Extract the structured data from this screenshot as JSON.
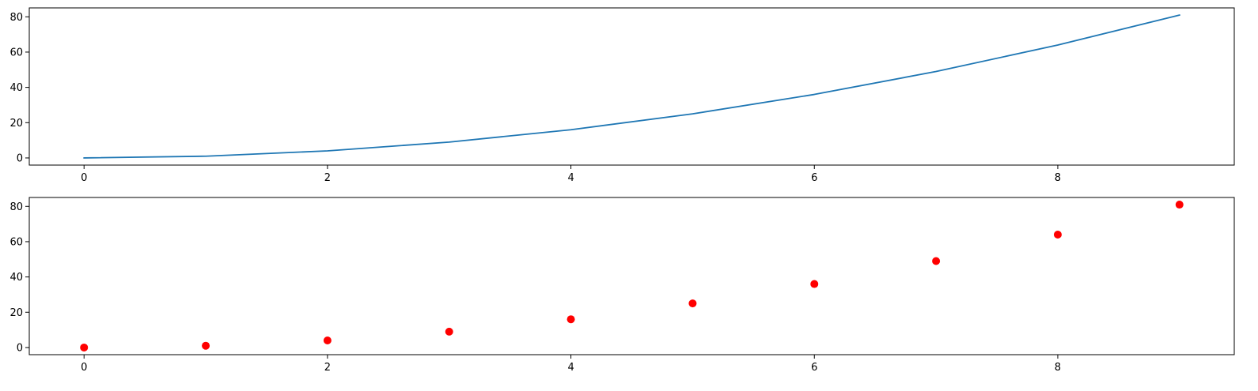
{
  "colors": {
    "line": "#1f77b4",
    "marker": "#ff0000",
    "axes": "#000000",
    "background": "#ffffff"
  },
  "chart_data": [
    {
      "type": "line",
      "title": "",
      "xlabel": "",
      "ylabel": "",
      "x": [
        0,
        1,
        2,
        3,
        4,
        5,
        6,
        7,
        8,
        9
      ],
      "series": [
        {
          "name": "",
          "values": [
            0,
            1,
            4,
            9,
            16,
            25,
            36,
            49,
            64,
            81
          ]
        }
      ],
      "xlim": [
        -0.45,
        9.45
      ],
      "ylim": [
        -4.05,
        85.05
      ],
      "xticks": [
        0,
        2,
        4,
        6,
        8
      ],
      "yticks": [
        0,
        20,
        40,
        60,
        80
      ],
      "grid": false,
      "legend": "none"
    },
    {
      "type": "scatter",
      "title": "",
      "xlabel": "",
      "ylabel": "",
      "x": [
        0,
        1,
        2,
        3,
        4,
        5,
        6,
        7,
        8,
        9
      ],
      "series": [
        {
          "name": "",
          "values": [
            0,
            1,
            4,
            9,
            16,
            25,
            36,
            49,
            64,
            81
          ]
        }
      ],
      "xlim": [
        -0.45,
        9.45
      ],
      "ylim": [
        -4.05,
        85.05
      ],
      "xticks": [
        0,
        2,
        4,
        6,
        8
      ],
      "yticks": [
        0,
        20,
        40,
        60,
        80
      ],
      "grid": false,
      "legend": "none"
    }
  ]
}
